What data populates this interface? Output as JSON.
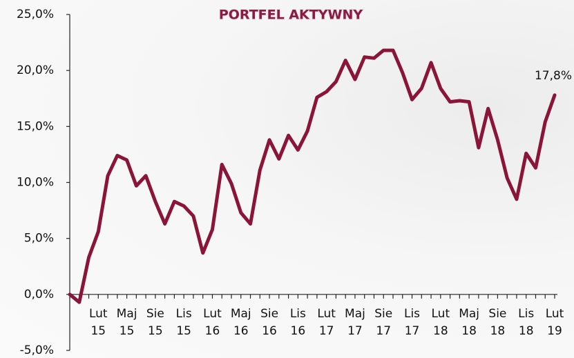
{
  "chart_data": {
    "type": "line",
    "title": "PORTFEL AKTYWNY",
    "categories": [
      null,
      null,
      null,
      "Lut 15",
      null,
      null,
      "Maj 15",
      null,
      null,
      "Sie 15",
      null,
      null,
      "Lis 15",
      null,
      null,
      "Lut 16",
      null,
      null,
      "Maj 16",
      null,
      null,
      "Sie 16",
      null,
      null,
      "Lis 16",
      null,
      null,
      "Lut 17",
      null,
      null,
      "Maj 17",
      null,
      null,
      "Sie 17",
      null,
      null,
      "Lis 17",
      null,
      null,
      "Lut 18",
      null,
      null,
      "Maj 18",
      null,
      null,
      "Sie 18",
      null,
      null,
      "Lis 18",
      null,
      null,
      "Lut 19"
    ],
    "series": [
      {
        "color": "#8a1538",
        "values": [
          0.0,
          -0.7,
          3.3,
          5.6,
          10.6,
          12.4,
          12.0,
          9.7,
          10.6,
          8.3,
          6.3,
          8.3,
          7.9,
          7.0,
          3.7,
          5.8,
          11.6,
          9.9,
          7.3,
          6.3,
          11.1,
          13.8,
          12.1,
          14.2,
          12.9,
          14.6,
          17.6,
          18.1,
          19.0,
          20.9,
          19.2,
          21.2,
          21.1,
          21.8,
          21.8,
          19.8,
          17.4,
          18.4,
          20.7,
          18.4,
          17.2,
          17.3,
          17.2,
          13.1,
          16.6,
          13.8,
          10.4,
          8.5,
          12.6,
          11.3,
          15.4,
          17.8
        ],
        "value_labels": [
          null,
          null,
          null,
          null,
          null,
          null,
          null,
          null,
          null,
          null,
          null,
          null,
          null,
          null,
          null,
          null,
          null,
          null,
          null,
          null,
          null,
          null,
          null,
          null,
          null,
          null,
          null,
          null,
          null,
          null,
          null,
          null,
          null,
          null,
          null,
          null,
          null,
          null,
          null,
          null,
          null,
          null,
          null,
          null,
          null,
          null,
          null,
          null,
          null,
          null,
          null,
          "17,8%"
        ]
      }
    ],
    "ylim": [
      -5,
      25
    ],
    "yticks": [
      {
        "value": -5,
        "label": "-5,0%"
      },
      {
        "value": 0,
        "label": "0,0%"
      },
      {
        "value": 5,
        "label": "5,0%"
      },
      {
        "value": 10,
        "label": "10,0%"
      },
      {
        "value": 15,
        "label": "15,0%"
      },
      {
        "value": 20,
        "label": "20,0%"
      },
      {
        "value": 25,
        "label": "25,0%"
      }
    ],
    "grid": false
  }
}
